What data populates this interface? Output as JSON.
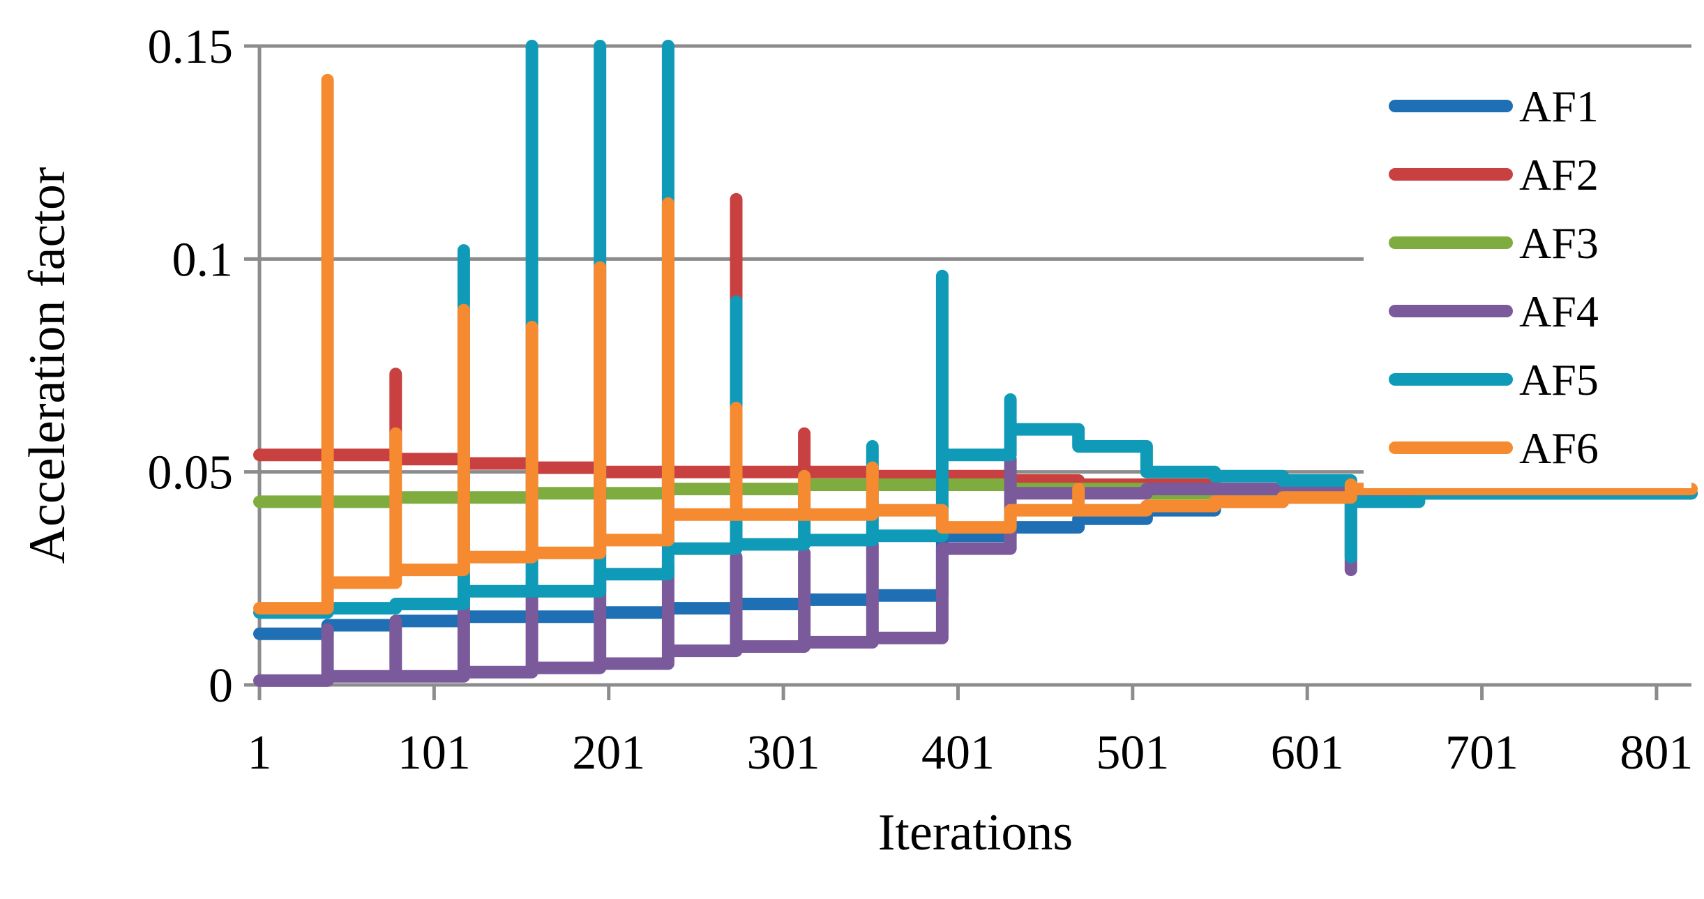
{
  "chart_data": {
    "type": "line",
    "title": "",
    "xlabel": "Iterations",
    "ylabel": "Acceleration factor",
    "xlim": [
      1,
      821
    ],
    "ylim": [
      0,
      0.15
    ],
    "x_ticks": [
      1,
      101,
      201,
      301,
      401,
      501,
      601,
      701,
      801
    ],
    "y_ticks": [
      0,
      0.05,
      0.1,
      0.15
    ],
    "x_tick_labels": [
      "1",
      "101",
      "201",
      "301",
      "401",
      "501",
      "601",
      "701",
      "801"
    ],
    "y_tick_labels": [
      "0",
      "0.05",
      "0.1",
      "0.15"
    ],
    "grid": "horizontal",
    "legend_position": "top-right",
    "series": [
      {
        "name": "AF1",
        "color": "#1f6fb4",
        "points": [
          [
            1,
            0.012
          ],
          [
            40,
            0.012
          ],
          [
            40,
            0.014
          ],
          [
            79,
            0.014
          ],
          [
            79,
            0.015
          ],
          [
            118,
            0.015
          ],
          [
            118,
            0.016
          ],
          [
            157,
            0.016
          ],
          [
            157,
            0.016
          ],
          [
            196,
            0.016
          ],
          [
            196,
            0.017
          ],
          [
            235,
            0.017
          ],
          [
            235,
            0.018
          ],
          [
            274,
            0.018
          ],
          [
            274,
            0.019
          ],
          [
            313,
            0.019
          ],
          [
            313,
            0.02
          ],
          [
            352,
            0.02
          ],
          [
            352,
            0.021
          ],
          [
            392,
            0.021
          ],
          [
            392,
            0.035
          ],
          [
            431,
            0.035
          ],
          [
            431,
            0.037
          ],
          [
            470,
            0.037
          ],
          [
            470,
            0.039
          ],
          [
            509,
            0.039
          ],
          [
            509,
            0.041
          ],
          [
            548,
            0.041
          ],
          [
            548,
            0.043
          ],
          [
            587,
            0.043
          ],
          [
            587,
            0.044
          ],
          [
            626,
            0.044
          ],
          [
            626,
            0.045
          ],
          [
            821,
            0.045
          ]
        ]
      },
      {
        "name": "AF2",
        "color": "#c94040",
        "points": [
          [
            1,
            0.054
          ],
          [
            40,
            0.054
          ],
          [
            40,
            0.054
          ],
          [
            79,
            0.054
          ],
          [
            79,
            0.073
          ],
          [
            79,
            0.053
          ],
          [
            118,
            0.053
          ],
          [
            118,
            0.052
          ],
          [
            157,
            0.052
          ],
          [
            157,
            0.051
          ],
          [
            196,
            0.051
          ],
          [
            196,
            0.05
          ],
          [
            235,
            0.05
          ],
          [
            235,
            0.05
          ],
          [
            274,
            0.05
          ],
          [
            274,
            0.114
          ],
          [
            274,
            0.05
          ],
          [
            313,
            0.05
          ],
          [
            313,
            0.059
          ],
          [
            313,
            0.05
          ],
          [
            352,
            0.05
          ],
          [
            352,
            0.049
          ],
          [
            392,
            0.049
          ],
          [
            392,
            0.049
          ],
          [
            431,
            0.049
          ],
          [
            431,
            0.048
          ],
          [
            470,
            0.048
          ],
          [
            470,
            0.047
          ],
          [
            509,
            0.047
          ],
          [
            509,
            0.047
          ],
          [
            548,
            0.047
          ],
          [
            548,
            0.046
          ],
          [
            587,
            0.046
          ],
          [
            587,
            0.046
          ],
          [
            626,
            0.046
          ],
          [
            626,
            0.045
          ],
          [
            821,
            0.045
          ]
        ]
      },
      {
        "name": "AF3",
        "color": "#7fac3f",
        "points": [
          [
            1,
            0.043
          ],
          [
            40,
            0.043
          ],
          [
            40,
            0.043
          ],
          [
            79,
            0.043
          ],
          [
            79,
            0.044
          ],
          [
            118,
            0.044
          ],
          [
            118,
            0.044
          ],
          [
            157,
            0.044
          ],
          [
            157,
            0.045
          ],
          [
            196,
            0.045
          ],
          [
            196,
            0.045
          ],
          [
            235,
            0.045
          ],
          [
            235,
            0.046
          ],
          [
            274,
            0.046
          ],
          [
            274,
            0.046
          ],
          [
            313,
            0.046
          ],
          [
            313,
            0.047
          ],
          [
            352,
            0.047
          ],
          [
            352,
            0.047
          ],
          [
            392,
            0.047
          ],
          [
            392,
            0.047
          ],
          [
            431,
            0.047
          ],
          [
            431,
            0.046
          ],
          [
            470,
            0.046
          ],
          [
            470,
            0.046
          ],
          [
            509,
            0.046
          ],
          [
            509,
            0.045
          ],
          [
            821,
            0.045
          ]
        ]
      },
      {
        "name": "AF4",
        "color": "#7a5a9a",
        "points": [
          [
            1,
            0.001
          ],
          [
            40,
            0.001
          ],
          [
            40,
            0.013
          ],
          [
            40,
            0.002
          ],
          [
            79,
            0.002
          ],
          [
            79,
            0.015
          ],
          [
            79,
            0.002
          ],
          [
            118,
            0.002
          ],
          [
            118,
            0.021
          ],
          [
            118,
            0.003
          ],
          [
            157,
            0.003
          ],
          [
            157,
            0.024
          ],
          [
            157,
            0.004
          ],
          [
            196,
            0.004
          ],
          [
            196,
            0.025
          ],
          [
            196,
            0.005
          ],
          [
            235,
            0.005
          ],
          [
            235,
            0.028
          ],
          [
            235,
            0.008
          ],
          [
            274,
            0.008
          ],
          [
            274,
            0.03
          ],
          [
            274,
            0.009
          ],
          [
            313,
            0.009
          ],
          [
            313,
            0.031
          ],
          [
            313,
            0.01
          ],
          [
            352,
            0.01
          ],
          [
            352,
            0.033
          ],
          [
            352,
            0.011
          ],
          [
            392,
            0.011
          ],
          [
            392,
            0.032
          ],
          [
            431,
            0.032
          ],
          [
            431,
            0.053
          ],
          [
            431,
            0.045
          ],
          [
            470,
            0.045
          ],
          [
            470,
            0.045
          ],
          [
            509,
            0.045
          ],
          [
            509,
            0.046
          ],
          [
            548,
            0.046
          ],
          [
            548,
            0.046
          ],
          [
            587,
            0.046
          ],
          [
            587,
            0.046
          ],
          [
            626,
            0.046
          ],
          [
            626,
            0.027
          ],
          [
            626,
            0.045
          ],
          [
            821,
            0.045
          ]
        ]
      },
      {
        "name": "AF5",
        "color": "#0f9ab8",
        "points": [
          [
            1,
            0.017
          ],
          [
            40,
            0.017
          ],
          [
            40,
            0.018
          ],
          [
            79,
            0.018
          ],
          [
            79,
            0.019
          ],
          [
            118,
            0.019
          ],
          [
            118,
            0.102
          ],
          [
            118,
            0.022
          ],
          [
            157,
            0.022
          ],
          [
            157,
            0.15
          ],
          [
            157,
            0.022
          ],
          [
            196,
            0.022
          ],
          [
            196,
            0.15
          ],
          [
            196,
            0.026
          ],
          [
            235,
            0.026
          ],
          [
            235,
            0.15
          ],
          [
            235,
            0.032
          ],
          [
            274,
            0.032
          ],
          [
            274,
            0.09
          ],
          [
            274,
            0.033
          ],
          [
            313,
            0.033
          ],
          [
            313,
            0.049
          ],
          [
            313,
            0.034
          ],
          [
            352,
            0.034
          ],
          [
            352,
            0.056
          ],
          [
            352,
            0.035
          ],
          [
            392,
            0.035
          ],
          [
            392,
            0.096
          ],
          [
            392,
            0.054
          ],
          [
            431,
            0.054
          ],
          [
            431,
            0.067
          ],
          [
            431,
            0.06
          ],
          [
            470,
            0.06
          ],
          [
            470,
            0.056
          ],
          [
            509,
            0.056
          ],
          [
            509,
            0.05
          ],
          [
            548,
            0.05
          ],
          [
            548,
            0.049
          ],
          [
            587,
            0.049
          ],
          [
            587,
            0.048
          ],
          [
            626,
            0.048
          ],
          [
            626,
            0.03
          ],
          [
            626,
            0.043
          ],
          [
            665,
            0.043
          ],
          [
            665,
            0.045
          ],
          [
            821,
            0.045
          ]
        ]
      },
      {
        "name": "AF6",
        "color": "#f58a31",
        "points": [
          [
            1,
            0.018
          ],
          [
            40,
            0.018
          ],
          [
            40,
            0.142
          ],
          [
            40,
            0.024
          ],
          [
            79,
            0.024
          ],
          [
            79,
            0.059
          ],
          [
            79,
            0.027
          ],
          [
            118,
            0.027
          ],
          [
            118,
            0.088
          ],
          [
            118,
            0.03
          ],
          [
            157,
            0.03
          ],
          [
            157,
            0.084
          ],
          [
            157,
            0.031
          ],
          [
            196,
            0.031
          ],
          [
            196,
            0.098
          ],
          [
            196,
            0.034
          ],
          [
            235,
            0.034
          ],
          [
            235,
            0.113
          ],
          [
            235,
            0.04
          ],
          [
            274,
            0.04
          ],
          [
            274,
            0.065
          ],
          [
            274,
            0.04
          ],
          [
            313,
            0.04
          ],
          [
            313,
            0.049
          ],
          [
            313,
            0.04
          ],
          [
            352,
            0.04
          ],
          [
            352,
            0.051
          ],
          [
            352,
            0.041
          ],
          [
            392,
            0.041
          ],
          [
            392,
            0.037
          ],
          [
            431,
            0.037
          ],
          [
            431,
            0.041
          ],
          [
            470,
            0.041
          ],
          [
            470,
            0.046
          ],
          [
            470,
            0.041
          ],
          [
            509,
            0.041
          ],
          [
            509,
            0.042
          ],
          [
            548,
            0.042
          ],
          [
            548,
            0.043
          ],
          [
            587,
            0.043
          ],
          [
            587,
            0.044
          ],
          [
            626,
            0.044
          ],
          [
            626,
            0.047
          ],
          [
            626,
            0.046
          ],
          [
            821,
            0.046
          ]
        ]
      }
    ]
  }
}
